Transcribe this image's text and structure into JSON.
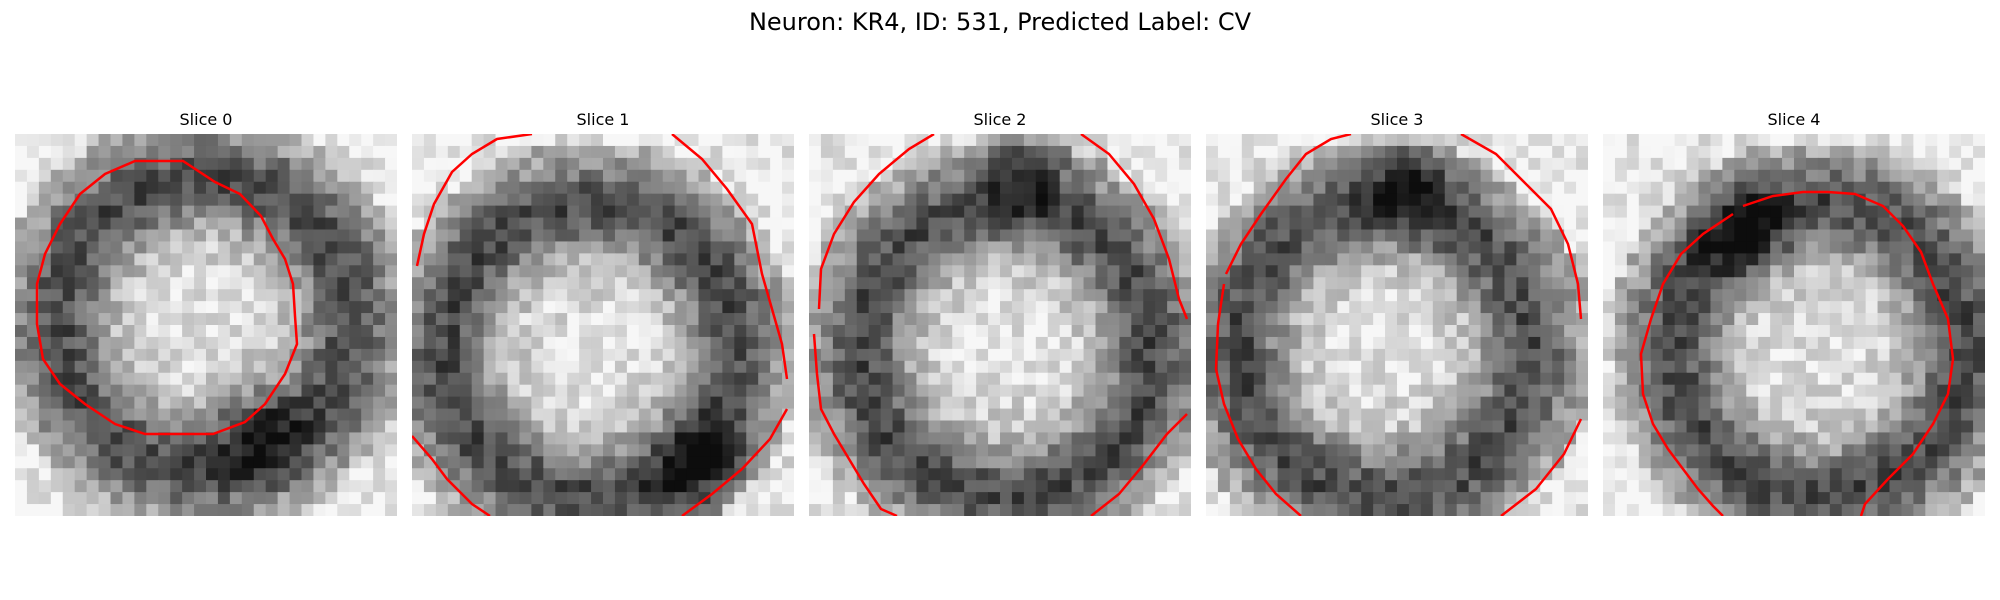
{
  "figure": {
    "title": "Neuron: KR4, ID: 531, Predicted Label: CV"
  },
  "panels": [
    {
      "title": "Slice 0"
    },
    {
      "title": "Slice 1"
    },
    {
      "title": "Slice 2"
    },
    {
      "title": "Slice 3"
    },
    {
      "title": "Slice 4"
    }
  ],
  "colors": {
    "contour": "#ff0000",
    "colormap": "grayscale"
  }
}
